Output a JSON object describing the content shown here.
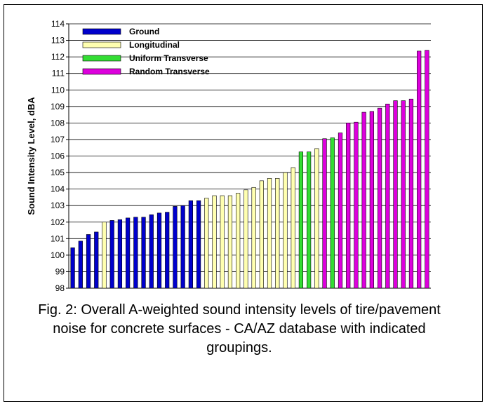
{
  "caption": "Fig. 2:  Overall A-weighted sound intensity levels of tire/pavement noise for concrete surfaces - CA/AZ database with indicated groupings.",
  "chart_data": {
    "type": "bar",
    "title": "",
    "xlabel": "",
    "ylabel": "Sound Intensity Level, dBA",
    "ylim": [
      98,
      114
    ],
    "yticks": [
      98,
      99,
      100,
      101,
      102,
      103,
      104,
      105,
      106,
      107,
      108,
      109,
      110,
      111,
      112,
      113,
      114
    ],
    "grid": true,
    "legend_position": "top-left",
    "series": [
      {
        "name": "Ground",
        "color": "#0000cc",
        "values": [
          100.5,
          100.9,
          101.3,
          101.4,
          102.0,
          102.1,
          102.15,
          102.25,
          102.3,
          102.3,
          102.45,
          102.55,
          102.6,
          102.95,
          103.0,
          103.3,
          103.3
        ],
        "group_pattern": "GGGGYGGGGGGGGGGGG"
      },
      {
        "name": "Longitudinal",
        "color": "#ffffb0",
        "values": [
          103.45,
          103.55,
          103.6,
          103.6,
          103.65,
          103.75,
          103.95,
          104.1,
          104.5,
          104.65,
          104.65,
          105.0,
          105.3,
          106.25,
          106.25,
          106.45
        ]
      },
      {
        "name": "Uniform Transverse",
        "color": "#33dd33",
        "values": []
      },
      {
        "name": "Random Transverse",
        "color": "#dd00dd",
        "values": [
          107.05,
          107.15,
          107.45,
          108.0,
          108.05,
          108.65,
          108.7,
          108.9,
          109.15,
          109.35,
          109.35,
          109.45,
          112.35,
          112.4
        ]
      }
    ],
    "bars": [
      {
        "value": 100.45,
        "group": "Ground"
      },
      {
        "value": 100.85,
        "group": "Ground"
      },
      {
        "value": 101.25,
        "group": "Ground"
      },
      {
        "value": 101.4,
        "group": "Ground"
      },
      {
        "value": 102.0,
        "group": "Longitudinal"
      },
      {
        "value": 102.1,
        "group": "Ground"
      },
      {
        "value": 102.15,
        "group": "Ground"
      },
      {
        "value": 102.25,
        "group": "Ground"
      },
      {
        "value": 102.3,
        "group": "Ground"
      },
      {
        "value": 102.3,
        "group": "Ground"
      },
      {
        "value": 102.45,
        "group": "Ground"
      },
      {
        "value": 102.55,
        "group": "Ground"
      },
      {
        "value": 102.6,
        "group": "Ground"
      },
      {
        "value": 102.95,
        "group": "Ground"
      },
      {
        "value": 103.0,
        "group": "Ground"
      },
      {
        "value": 103.3,
        "group": "Ground"
      },
      {
        "value": 103.3,
        "group": "Ground"
      },
      {
        "value": 103.45,
        "group": "Longitudinal"
      },
      {
        "value": 103.6,
        "group": "Longitudinal"
      },
      {
        "value": 103.6,
        "group": "Longitudinal"
      },
      {
        "value": 103.6,
        "group": "Longitudinal"
      },
      {
        "value": 103.75,
        "group": "Longitudinal"
      },
      {
        "value": 103.95,
        "group": "Longitudinal"
      },
      {
        "value": 104.1,
        "group": "Longitudinal"
      },
      {
        "value": 104.5,
        "group": "Longitudinal"
      },
      {
        "value": 104.65,
        "group": "Longitudinal"
      },
      {
        "value": 104.65,
        "group": "Longitudinal"
      },
      {
        "value": 105.0,
        "group": "Longitudinal"
      },
      {
        "value": 105.3,
        "group": "Longitudinal"
      },
      {
        "value": 106.25,
        "group": "Uniform Transverse"
      },
      {
        "value": 106.25,
        "group": "Uniform Transverse"
      },
      {
        "value": 106.45,
        "group": "Longitudinal"
      },
      {
        "value": 107.05,
        "group": "Random Transverse"
      },
      {
        "value": 107.1,
        "group": "Uniform Transverse"
      },
      {
        "value": 107.4,
        "group": "Random Transverse"
      },
      {
        "value": 108.0,
        "group": "Random Transverse"
      },
      {
        "value": 108.05,
        "group": "Random Transverse"
      },
      {
        "value": 108.65,
        "group": "Random Transverse"
      },
      {
        "value": 108.7,
        "group": "Random Transverse"
      },
      {
        "value": 108.9,
        "group": "Random Transverse"
      },
      {
        "value": 109.15,
        "group": "Random Transverse"
      },
      {
        "value": 109.35,
        "group": "Random Transverse"
      },
      {
        "value": 109.35,
        "group": "Random Transverse"
      },
      {
        "value": 109.45,
        "group": "Random Transverse"
      },
      {
        "value": 112.35,
        "group": "Random Transverse"
      },
      {
        "value": 112.4,
        "group": "Random Transverse"
      }
    ]
  }
}
